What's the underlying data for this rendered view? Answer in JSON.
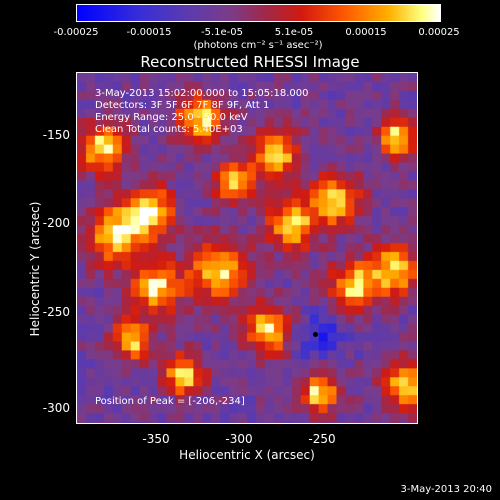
{
  "colorbar": {
    "ticks": [
      "-0.00025",
      "-0.00015",
      "-5.1e-05",
      "5.1e-05",
      "0.00015",
      "0.00025"
    ],
    "unit": "(photons cm⁻² s⁻¹ asec⁻²)"
  },
  "title": "Reconstructed RHESSI Image",
  "info": {
    "time": "3-May-2013 15:02:00.000 to 15:05:18.000",
    "detectors": "Detectors: 3F 5F 6F 7F 8F 9F, Att 1",
    "energy": "Energy Range: 25.0 - 50.0 keV",
    "clean": "Clean    Total counts: 5.40E+03",
    "peak": "Position of Peak = [-206,-234]"
  },
  "axes": {
    "xlabel": "Heliocentric X (arcsec)",
    "ylabel": "Heliocentric Y (arcsec)",
    "xticks": [
      "-350",
      "-300",
      "-250"
    ],
    "yticks": [
      "-150",
      "-200",
      "-250",
      "-300"
    ]
  },
  "timestamp": "3-May-2013 20:40",
  "chart_data": {
    "type": "heatmap",
    "title": "Reconstructed RHESSI Image",
    "xlabel": "Heliocentric X (arcsec)",
    "ylabel": "Heliocentric Y (arcsec)",
    "xlim": [
      -395,
      -205
    ],
    "ylim": [
      -310,
      -120
    ],
    "color_range": [
      -0.00025,
      0.00025
    ],
    "peak": [
      -206,
      -234
    ]
  }
}
